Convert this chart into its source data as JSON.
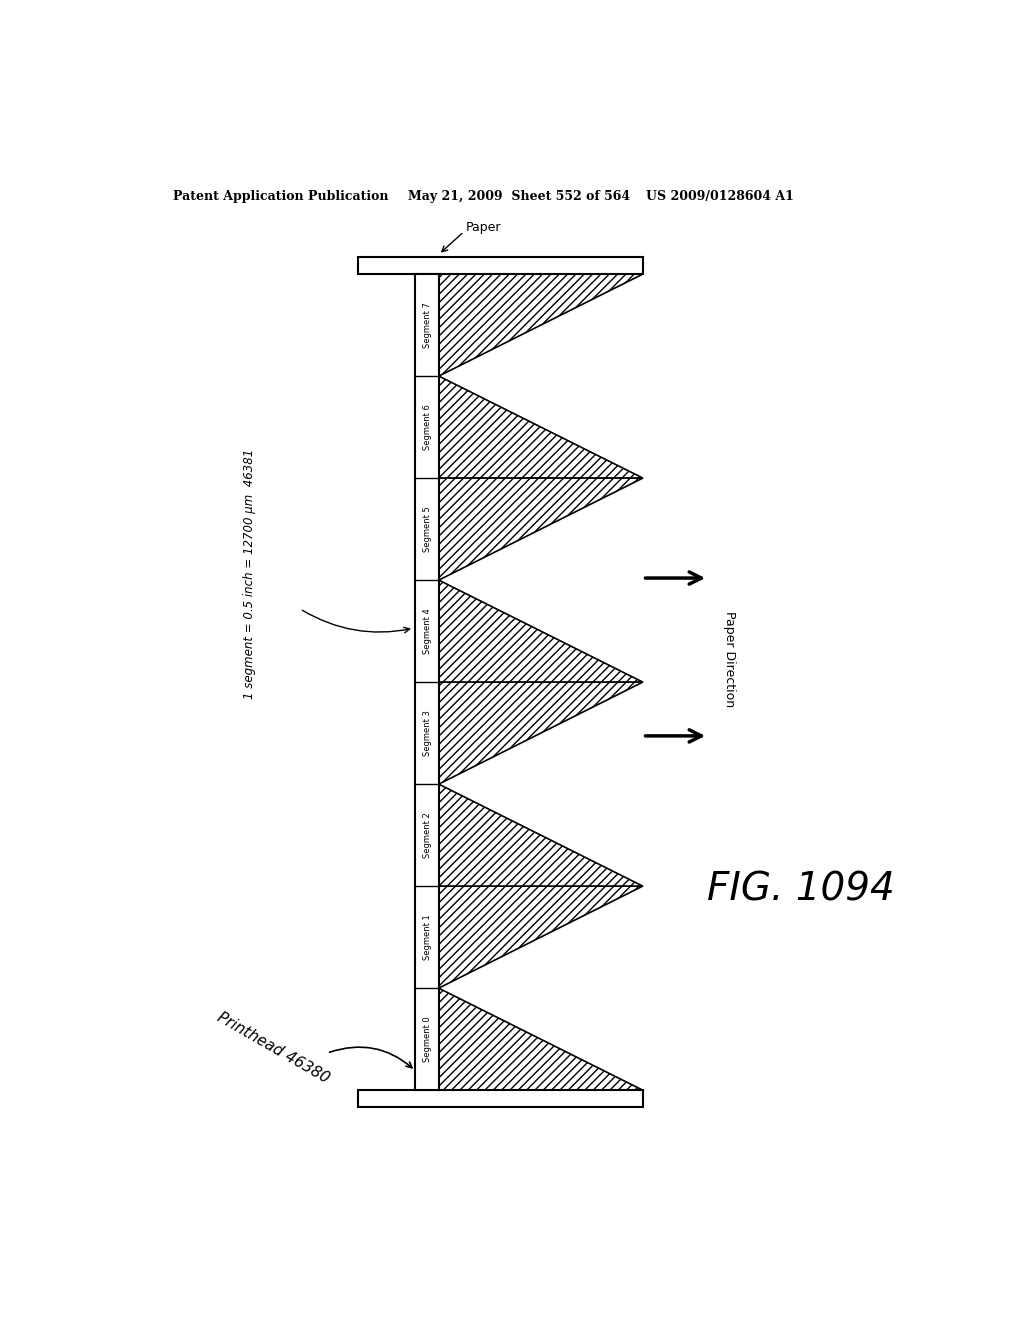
{
  "title_left": "Patent Application Publication",
  "title_mid": "May 21, 2009  Sheet 552 of 564",
  "title_right": "US 2009/0128604 A1",
  "fig_label": "FIG. 1094",
  "segments": [
    "Segment 0",
    "Segment 1",
    "Segment 2",
    "Segment 3",
    "Segment 4",
    "Segment 5",
    "Segment 6",
    "Segment 7"
  ],
  "paper_label": "Paper",
  "printhead_label": "Printhead 46380",
  "segment_label": "1 segment = 0.5 inch = 12700 μm  46381",
  "paper_direction_label": "Paper Direction",
  "background": "#ffffff",
  "line_color": "#000000"
}
